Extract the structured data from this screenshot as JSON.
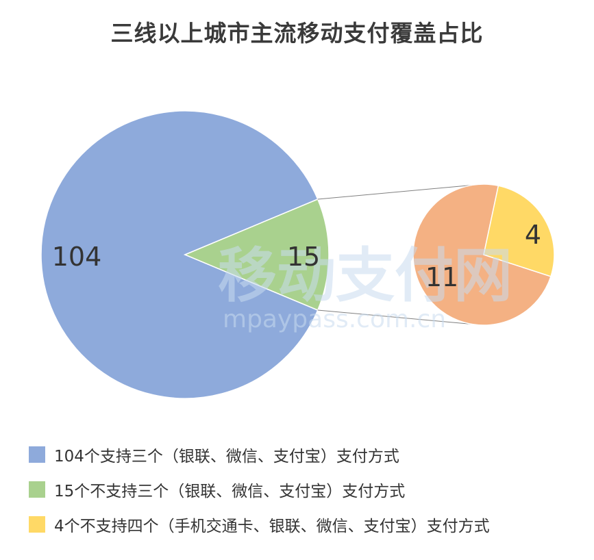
{
  "chart_data": {
    "type": "pie",
    "title": "三线以上城市主流移动支付覆盖占比",
    "main_pie": {
      "slices": [
        {
          "label": "104",
          "value": 104,
          "color": "#8eaadb"
        },
        {
          "label": "15",
          "value": 15,
          "color": "#a9d18e"
        }
      ]
    },
    "detail_pie": {
      "explodes": "15",
      "slices": [
        {
          "label": "11",
          "value": 11,
          "color": "#f4b183"
        },
        {
          "label": "4",
          "value": 4,
          "color": "#ffd966"
        }
      ]
    },
    "legend": [
      {
        "text": "104个支持三个（银联、微信、支付宝）支付方式",
        "color": "#8eaadb"
      },
      {
        "text": "15个不支持三个（银联、微信、支付宝）支付方式",
        "color": "#a9d18e"
      },
      {
        "text": "4个不支持四个（手机交通卡、银联、微信、支付宝）支付方式",
        "color": "#ffd966"
      }
    ]
  },
  "watermark": {
    "text": "移动支付网",
    "url": "mpaypass.com.cn"
  }
}
